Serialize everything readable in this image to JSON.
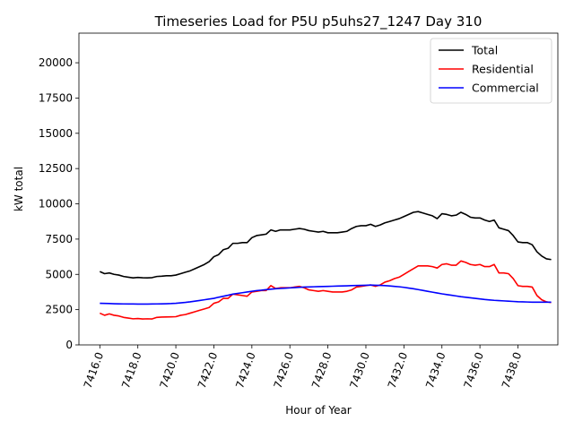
{
  "chart_data": {
    "type": "line",
    "title": "Timeseries Load for P5U p5uhs27_1247  Day 310",
    "xlabel": "Hour of Year",
    "ylabel": "kW total",
    "xlim": [
      7414.9,
      7440.1
    ],
    "ylim": [
      0,
      22100
    ],
    "xticks": [
      7416,
      7418,
      7420,
      7422,
      7424,
      7426,
      7428,
      7430,
      7432,
      7434,
      7436,
      7438
    ],
    "xtick_labels": [
      "7416.0",
      "7418.0",
      "7420.0",
      "7422.0",
      "7424.0",
      "7426.0",
      "7428.0",
      "7430.0",
      "7432.0",
      "7434.0",
      "7436.0",
      "7438.0"
    ],
    "yticks": [
      0,
      2500,
      5000,
      7500,
      10000,
      12500,
      15000,
      17500,
      20000
    ],
    "ytick_labels": [
      "0",
      "2500",
      "5000",
      "7500",
      "10000",
      "12500",
      "15000",
      "17500",
      "20000"
    ],
    "legend_position": "top-right",
    "x": [
      7416.0,
      7416.25,
      7416.5,
      7416.75,
      7417.0,
      7417.25,
      7417.5,
      7417.75,
      7418.0,
      7418.25,
      7418.5,
      7418.75,
      7419.0,
      7419.25,
      7419.5,
      7419.75,
      7420.0,
      7420.25,
      7420.5,
      7420.75,
      7421.0,
      7421.25,
      7421.5,
      7421.75,
      7422.0,
      7422.25,
      7422.5,
      7422.75,
      7423.0,
      7423.25,
      7423.5,
      7423.75,
      7424.0,
      7424.25,
      7424.5,
      7424.75,
      7425.0,
      7425.25,
      7425.5,
      7425.75,
      7426.0,
      7426.25,
      7426.5,
      7426.75,
      7427.0,
      7427.25,
      7427.5,
      7427.75,
      7428.0,
      7428.25,
      7428.5,
      7428.75,
      7429.0,
      7429.25,
      7429.5,
      7429.75,
      7430.0,
      7430.25,
      7430.5,
      7430.75,
      7431.0,
      7431.25,
      7431.5,
      7431.75,
      7432.0,
      7432.25,
      7432.5,
      7432.75,
      7433.0,
      7433.25,
      7433.5,
      7433.75,
      7434.0,
      7434.25,
      7434.5,
      7434.75,
      7435.0,
      7435.25,
      7435.5,
      7435.75,
      7436.0,
      7436.25,
      7436.5,
      7436.75,
      7437.0,
      7437.25,
      7437.5,
      7437.75,
      7438.0,
      7438.25,
      7438.5,
      7438.75,
      7439.0,
      7439.25,
      7439.5,
      7439.75
    ],
    "series": [
      {
        "name": "Total",
        "color": "#000000",
        "values": [
          5200,
          5050,
          5100,
          5000,
          4950,
          4850,
          4800,
          4750,
          4780,
          4760,
          4750,
          4770,
          4850,
          4870,
          4900,
          4900,
          4950,
          5050,
          5150,
          5250,
          5400,
          5550,
          5700,
          5900,
          6250,
          6400,
          6750,
          6850,
          7200,
          7200,
          7250,
          7250,
          7600,
          7750,
          7800,
          7850,
          8150,
          8050,
          8150,
          8150,
          8150,
          8200,
          8250,
          8200,
          8100,
          8050,
          8000,
          8050,
          7950,
          7950,
          7950,
          8000,
          8050,
          8250,
          8400,
          8450,
          8450,
          8550,
          8400,
          8500,
          8650,
          8750,
          8850,
          8950,
          9100,
          9250,
          9400,
          9450,
          9350,
          9250,
          9150,
          8950,
          9300,
          9250,
          9150,
          9200,
          9400,
          9250,
          9050,
          9000,
          9000,
          8850,
          8750,
          8850,
          8300,
          8200,
          8100,
          7750,
          7300,
          7250,
          7250,
          7100,
          6600,
          6300,
          6100,
          6050
        ]
      },
      {
        "name": "Residential",
        "color": "#ff0000",
        "values": [
          2250,
          2100,
          2200,
          2100,
          2050,
          1950,
          1900,
          1850,
          1870,
          1840,
          1850,
          1840,
          1950,
          1970,
          1980,
          1990,
          2000,
          2100,
          2150,
          2250,
          2350,
          2450,
          2550,
          2650,
          2950,
          3050,
          3300,
          3300,
          3600,
          3550,
          3500,
          3450,
          3750,
          3800,
          3850,
          3850,
          4200,
          4000,
          4050,
          4050,
          4050,
          4100,
          4150,
          4050,
          3900,
          3850,
          3800,
          3850,
          3800,
          3750,
          3750,
          3750,
          3800,
          3900,
          4100,
          4150,
          4200,
          4250,
          4150,
          4250,
          4450,
          4550,
          4700,
          4800,
          5000,
          5200,
          5400,
          5600,
          5600,
          5600,
          5550,
          5450,
          5700,
          5750,
          5650,
          5650,
          5950,
          5850,
          5700,
          5650,
          5700,
          5550,
          5550,
          5700,
          5100,
          5100,
          5050,
          4700,
          4200,
          4150,
          4150,
          4100,
          3500,
          3200,
          3050,
          3000
        ]
      },
      {
        "name": "Commercial",
        "color": "#0000ff",
        "values": [
          2950,
          2940,
          2930,
          2920,
          2910,
          2905,
          2900,
          2900,
          2895,
          2895,
          2895,
          2900,
          2905,
          2910,
          2920,
          2930,
          2950,
          2980,
          3010,
          3050,
          3100,
          3150,
          3200,
          3250,
          3300,
          3380,
          3450,
          3520,
          3600,
          3650,
          3700,
          3750,
          3800,
          3850,
          3880,
          3920,
          3950,
          3980,
          4000,
          4020,
          4040,
          4060,
          4080,
          4100,
          4110,
          4120,
          4130,
          4140,
          4150,
          4160,
          4170,
          4180,
          4190,
          4200,
          4210,
          4220,
          4230,
          4240,
          4230,
          4220,
          4200,
          4180,
          4150,
          4120,
          4080,
          4030,
          3980,
          3920,
          3860,
          3800,
          3740,
          3680,
          3620,
          3570,
          3520,
          3470,
          3420,
          3380,
          3340,
          3300,
          3260,
          3220,
          3190,
          3160,
          3140,
          3120,
          3100,
          3080,
          3060,
          3050,
          3040,
          3030,
          3030,
          3030,
          3030,
          3030
        ]
      }
    ]
  }
}
